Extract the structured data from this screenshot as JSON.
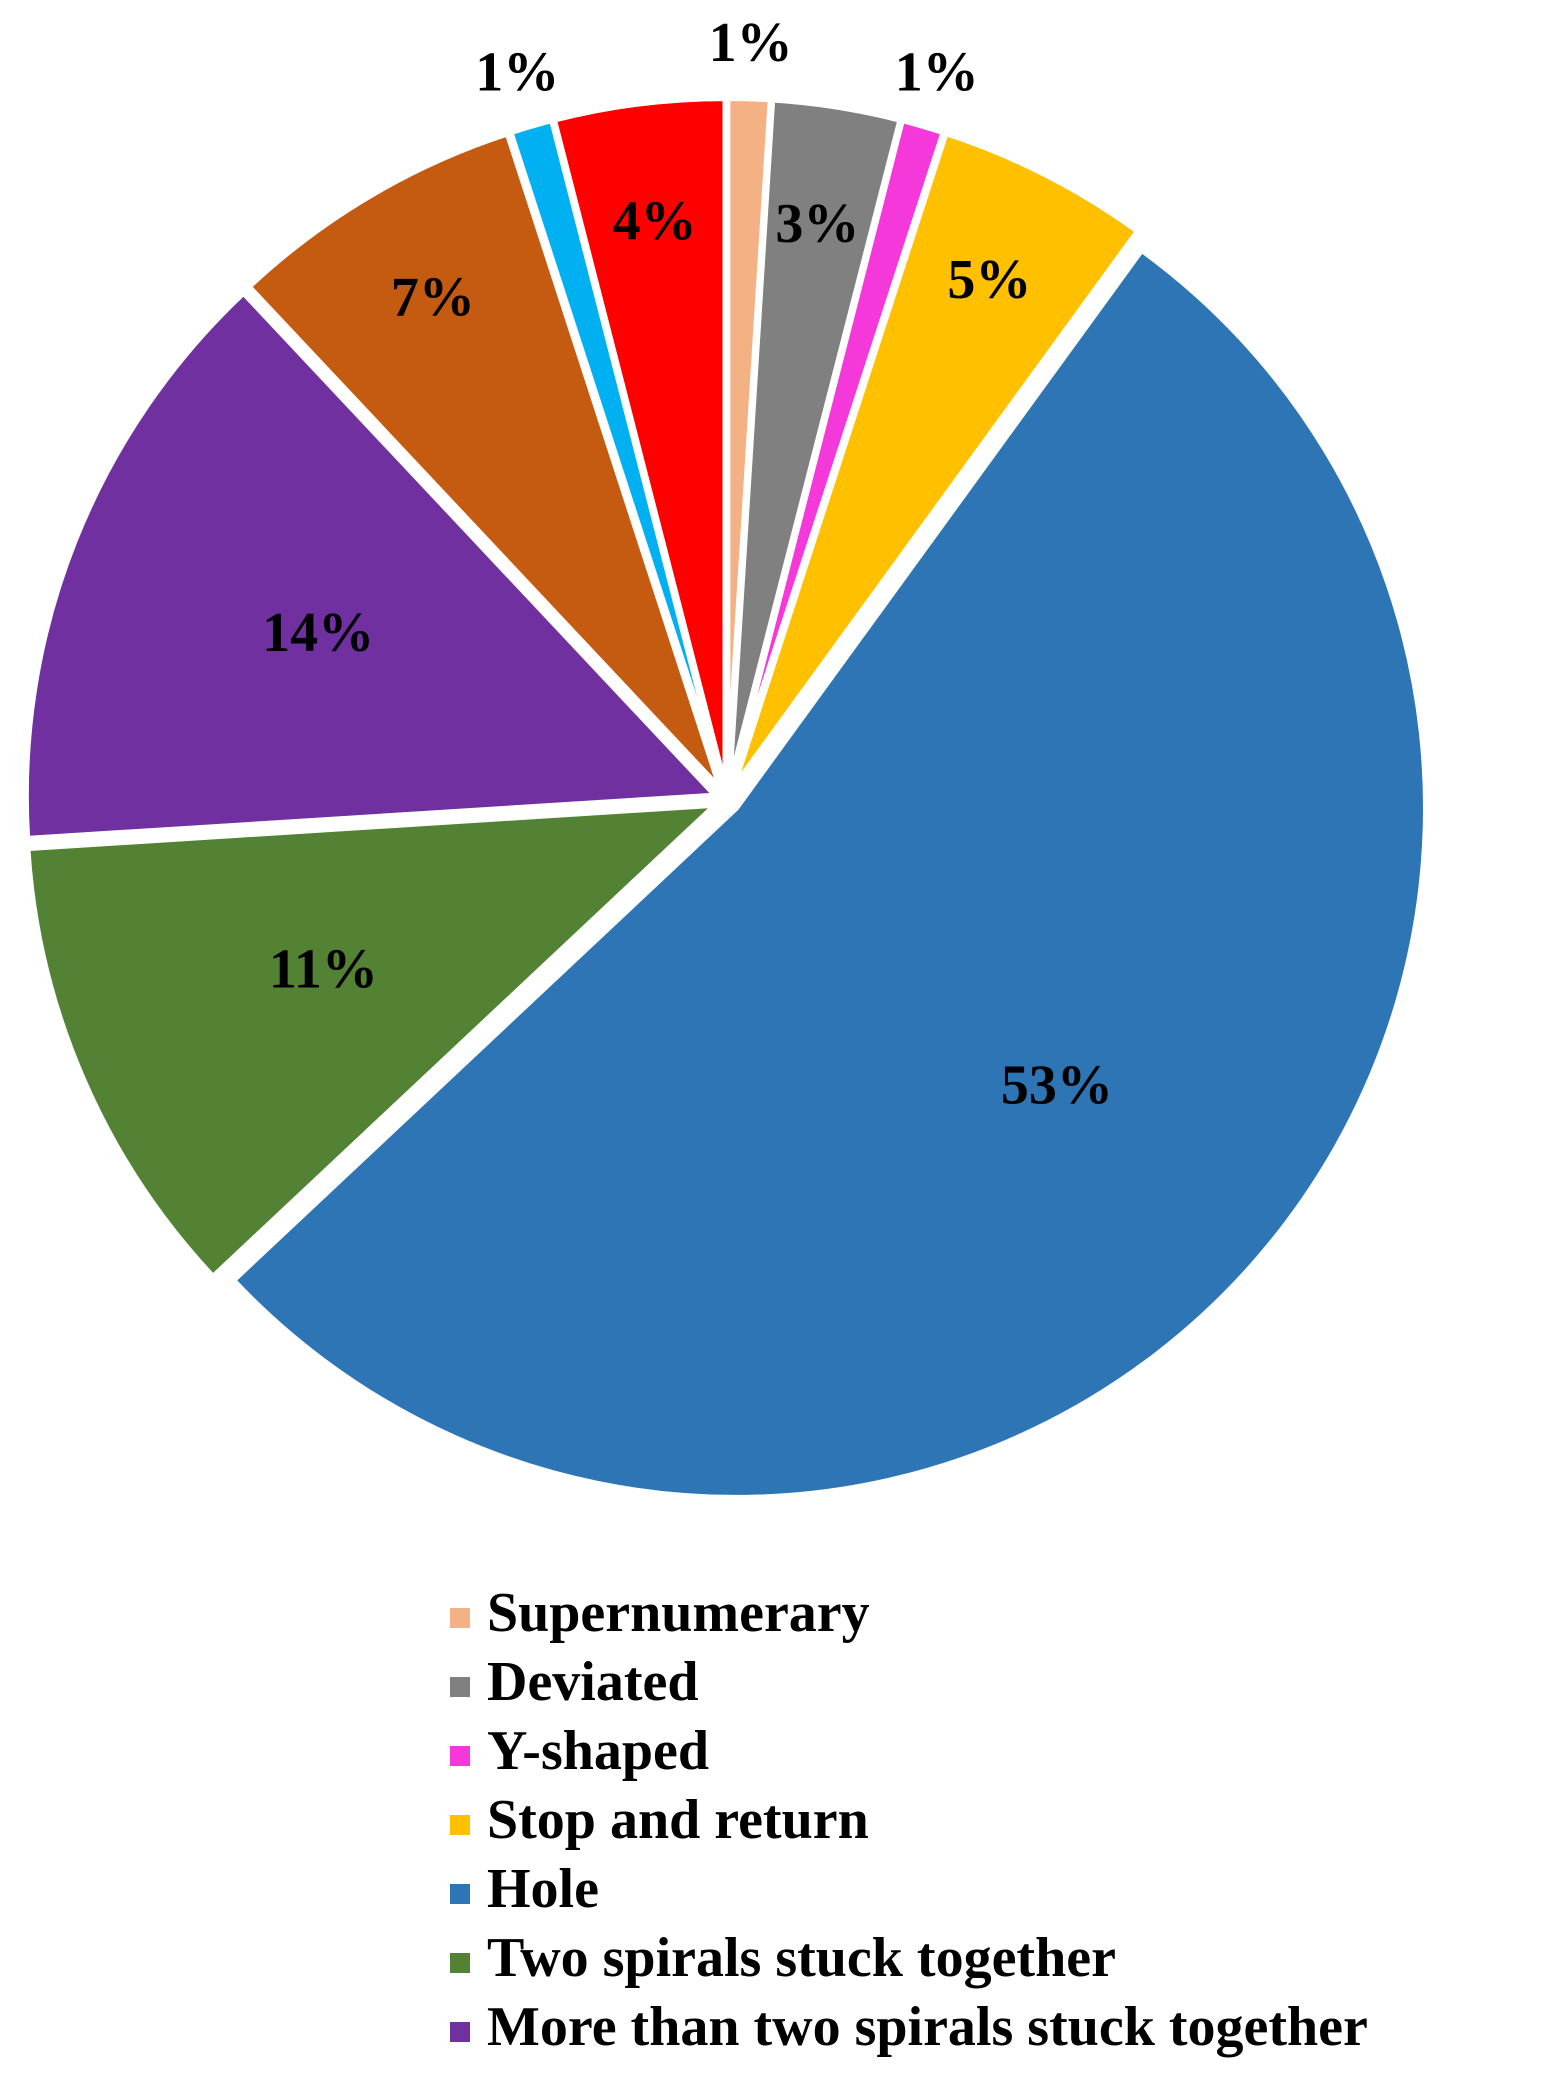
{
  "chart_data": {
    "type": "pie",
    "categories": [
      "Supernumerary",
      "Deviated",
      "Y-shaped",
      "Stop and return",
      "Hole",
      "Two spirals stuck together",
      "More than two spirals stuck together",
      null,
      null,
      null
    ],
    "values": [
      1,
      3,
      1,
      5,
      53,
      11,
      14,
      7,
      1,
      4
    ],
    "value_labels": [
      "1%",
      "3%",
      "1%",
      "5%",
      "53%",
      "11%",
      "14%",
      "7%",
      "1%",
      "4%"
    ],
    "colors": [
      "#f4b183",
      "#808080",
      "#f538da",
      "#ffc000",
      "#2e75b6",
      "#548235",
      "#7030a0",
      "#c55a11",
      "#00b0f0",
      "#ff0000"
    ],
    "legend": "bottom"
  }
}
